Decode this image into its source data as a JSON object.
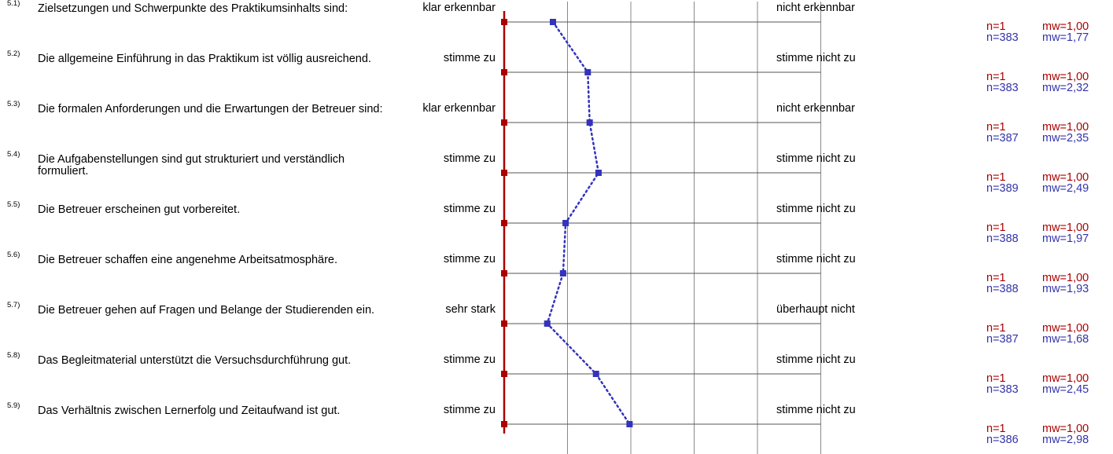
{
  "chart_data": {
    "type": "line",
    "title": "",
    "xlabel": "",
    "ylabel": "",
    "scale_steps": 6,
    "xlim": [
      1,
      6
    ],
    "colors": {
      "mine": "#aa0000",
      "all": "#3333bb"
    },
    "items": [
      {
        "num": "5.1)",
        "text": "Zielsetzungen und Schwerpunkte des Praktikumsinhalts sind:",
        "left": "klar erkennbar",
        "right": "nicht erkennbar",
        "mine_n": "n=1",
        "mine_mw": "mw=1,00",
        "all_n": "n=383",
        "all_mw": "mw=1,77",
        "mine_value": 1.0,
        "all_value": 1.77
      },
      {
        "num": "5.2)",
        "text": "Die allgemeine Einführung in das Praktikum ist völlig ausreichend.",
        "left": "stimme zu",
        "right": "stimme nicht zu",
        "mine_n": "n=1",
        "mine_mw": "mw=1,00",
        "all_n": "n=383",
        "all_mw": "mw=2,32",
        "mine_value": 1.0,
        "all_value": 2.32
      },
      {
        "num": "5.3)",
        "text": "Die formalen Anforderungen und die Erwartungen der Betreuer sind:",
        "left": "klar erkennbar",
        "right": "nicht erkennbar",
        "mine_n": "n=1",
        "mine_mw": "mw=1,00",
        "all_n": "n=387",
        "all_mw": "mw=2,35",
        "mine_value": 1.0,
        "all_value": 2.35
      },
      {
        "num": "5.4)",
        "text": "Die Aufgabenstellungen sind gut strukturiert und verständlich formuliert.",
        "left": "stimme zu",
        "right": "stimme nicht zu",
        "mine_n": "n=1",
        "mine_mw": "mw=1,00",
        "all_n": "n=389",
        "all_mw": "mw=2,49",
        "mine_value": 1.0,
        "all_value": 2.49
      },
      {
        "num": "5.5)",
        "text": "Die Betreuer erscheinen gut vorbereitet.",
        "left": "stimme zu",
        "right": "stimme nicht zu",
        "mine_n": "n=1",
        "mine_mw": "mw=1,00",
        "all_n": "n=388",
        "all_mw": "mw=1,97",
        "mine_value": 1.0,
        "all_value": 1.97
      },
      {
        "num": "5.6)",
        "text": "Die Betreuer schaffen eine angenehme Arbeitsatmosphäre.",
        "left": "stimme zu",
        "right": "stimme nicht zu",
        "mine_n": "n=1",
        "mine_mw": "mw=1,00",
        "all_n": "n=388",
        "all_mw": "mw=1,93",
        "mine_value": 1.0,
        "all_value": 1.93
      },
      {
        "num": "5.7)",
        "text": "Die Betreuer gehen auf Fragen und Belange der Studierenden ein.",
        "left": "sehr stark",
        "right": "überhaupt nicht",
        "mine_n": "n=1",
        "mine_mw": "mw=1,00",
        "all_n": "n=387",
        "all_mw": "mw=1,68",
        "mine_value": 1.0,
        "all_value": 1.68
      },
      {
        "num": "5.8)",
        "text": "Das Begleitmaterial unterstützt die Versuchsdurchführung gut.",
        "left": "stimme zu",
        "right": "stimme nicht zu",
        "mine_n": "n=1",
        "mine_mw": "mw=1,00",
        "all_n": "n=383",
        "all_mw": "mw=2,45",
        "mine_value": 1.0,
        "all_value": 2.45
      },
      {
        "num": "5.9)",
        "text": "Das Verhältnis zwischen Lernerfolg und Zeitaufwand ist gut.",
        "left": "stimme zu",
        "right": "stimme nicht zu",
        "mine_n": "n=1",
        "mine_mw": "mw=1,00",
        "all_n": "n=386",
        "all_mw": "mw=2,98",
        "mine_value": 1.0,
        "all_value": 2.98
      }
    ]
  }
}
